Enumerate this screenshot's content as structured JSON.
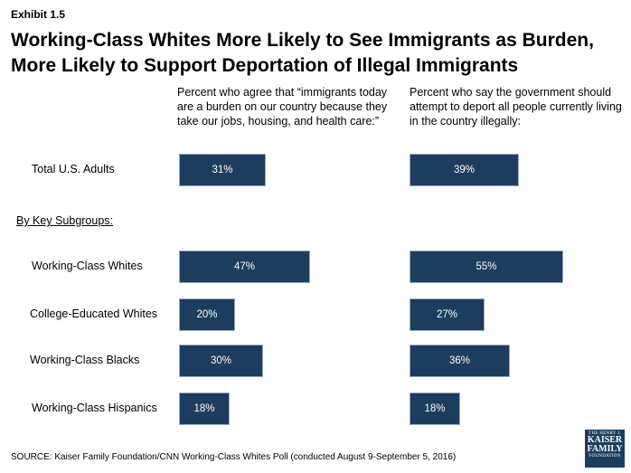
{
  "exhibit": "Exhibit 1.5",
  "title_lines": [
    "Working-Class Whites More Likely to See Immigrants as Burden,",
    "More Likely to Support Deportation of Illegal Immigrants"
  ],
  "subgroups_label": "By Key Subgroups:",
  "source": "SOURCE: Kaiser Family Foundation/CNN Working-Class Whites Poll (conducted August 9-September 5, 2016)",
  "logo": {
    "line1": "THE HENRY J.",
    "line2": "KAISER",
    "line3": "FAMILY",
    "line4": "FOUNDATION"
  },
  "colors": {
    "bar": "#1c3d5e",
    "bar_text": "#ffffff"
  },
  "chart_data": {
    "type": "bar",
    "orientation": "horizontal",
    "categories": [
      "Total U.S. Adults",
      "Working-Class Whites",
      "College-Educated Whites",
      "Working-Class Blacks",
      "Working-Class Hispanics"
    ],
    "series": [
      {
        "name": "Percent who agree that “immigrants today are a burden on our country because they take our jobs, housing, and health care:”",
        "values": [
          31,
          47,
          20,
          30,
          18
        ],
        "labels": [
          "31%",
          "47%",
          "20%",
          "30%",
          "18%"
        ]
      },
      {
        "name": "Percent who say the government should attempt to deport all people currently living in the country illegally:",
        "values": [
          39,
          55,
          27,
          36,
          18
        ],
        "labels": [
          "39%",
          "55%",
          "27%",
          "36%",
          "18%"
        ]
      }
    ],
    "xlim": [
      0,
      100
    ],
    "grid": false
  }
}
